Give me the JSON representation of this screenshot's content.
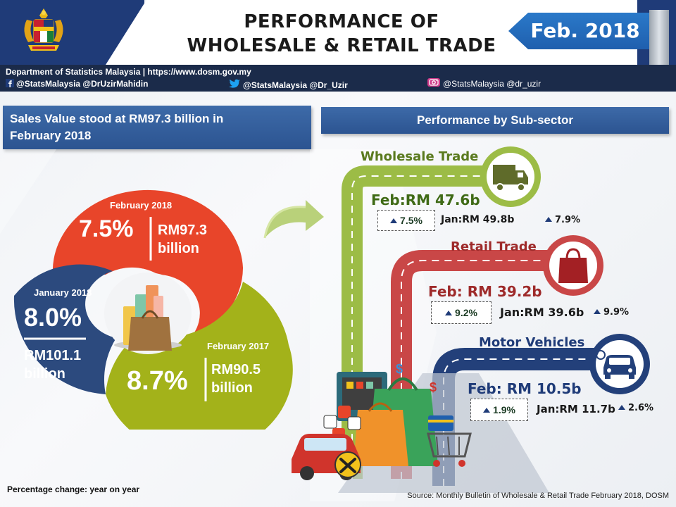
{
  "header": {
    "title_line1": "PERFORMANCE OF",
    "title_line2": "WHOLESALE & RETAIL TRADE",
    "date_tag": "Feb. 2018"
  },
  "info_bar": {
    "department": "Department of Statistics Malaysia  | https://www.dosm.gov.my",
    "facebook": "@StatsMalaysia @DrUzirMahidin",
    "twitter": "@StatsMalaysia @Dr_Uzir",
    "instagram": "@StatsMalaysia @dr_uzir"
  },
  "sales": {
    "headline_line1": "Sales Value stood at RM97.3 billion in",
    "headline_line2": "February 2018",
    "feb2018": {
      "label": "February 2018",
      "pct": "7.5%",
      "value_line1": "RM97.3",
      "value_line2": "billion"
    },
    "jan2018": {
      "label": "January 2018",
      "pct": "8.0%",
      "value_line1": "RM101.1",
      "value_line2": "billion"
    },
    "feb2017": {
      "label": "February 2017",
      "pct": "8.7%",
      "value_line1": "RM90.5",
      "value_line2": "billion"
    },
    "footnote": "Percentage change: year on year"
  },
  "subsector": {
    "heading": "Performance by Sub-sector",
    "wholesale": {
      "name": "Wholesale Trade",
      "feb": "Feb:RM 47.6b",
      "feb_pct": "7.5%",
      "jan": "Jan:RM 49.8b",
      "jan_pct": "7.9%"
    },
    "retail": {
      "name": "Retail Trade",
      "feb": "Feb: RM 39.2b",
      "feb_pct": "9.2%",
      "jan": "Jan:RM 39.6b",
      "jan_pct": "9.9%"
    },
    "motor": {
      "name": "Motor Vehicles",
      "feb": "Feb: RM 10.5b",
      "feb_pct": "1.9%",
      "jan": "Jan:RM 11.7b",
      "jan_pct": "2.6%"
    },
    "source": "Source: Monthly Bulletin of Wholesale & Retail Trade February 2018, DOSM"
  },
  "colors": {
    "red": "#e8452a",
    "olive": "#a3b21a",
    "navy": "#2c4a7e",
    "green_road": "#9cbc46",
    "red_road": "#c94747",
    "blue_road": "#23407a"
  }
}
